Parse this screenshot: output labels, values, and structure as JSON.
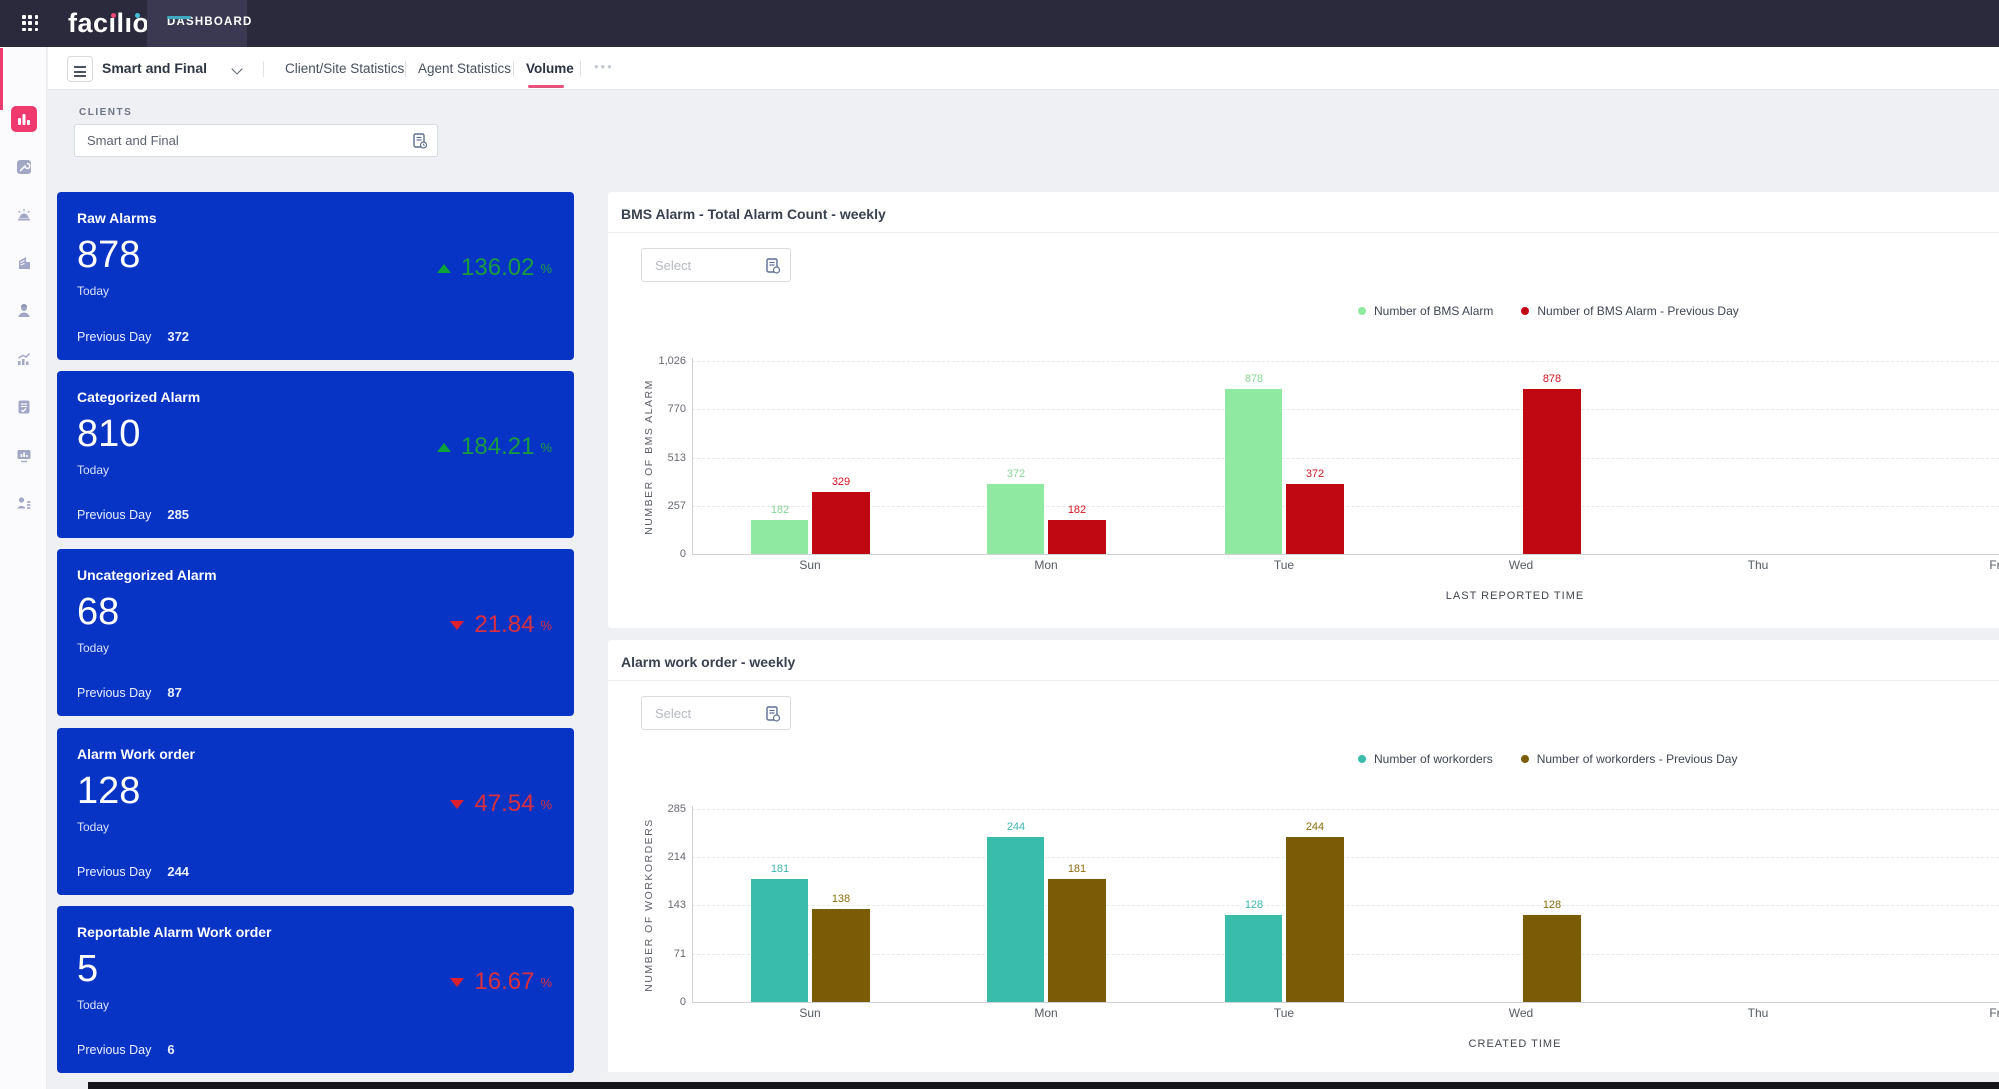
{
  "topbar": {
    "logo_text": "facilio",
    "nav_tab": "DASHBOARD"
  },
  "sidebar": {
    "items": [
      {
        "icon": "dashboard-icon",
        "active": true
      },
      {
        "icon": "maintenance-icon",
        "active": false
      },
      {
        "icon": "alarm-icon",
        "active": false
      },
      {
        "icon": "portfolio-icon",
        "active": false
      },
      {
        "icon": "workforce-icon",
        "active": false
      },
      {
        "icon": "analytics-icon",
        "active": false
      },
      {
        "icon": "reports-icon",
        "active": false
      },
      {
        "icon": "kiosk-icon",
        "active": false
      },
      {
        "icon": "clients-icon",
        "active": false
      }
    ]
  },
  "subnav": {
    "dashboard_name": "Smart and Final",
    "tabs": [
      {
        "label": "Client/Site Statistics",
        "active": false
      },
      {
        "label": "Agent Statistics",
        "active": false
      },
      {
        "label": "Volume",
        "active": true
      }
    ],
    "more": "•••"
  },
  "filters": {
    "clients_label": "CLIENTS",
    "clients_value": "Smart and Final"
  },
  "colors": {
    "card_bg": "#0834c5",
    "accent_pink": "#ee3a6f",
    "teal_underline": "#3fa9c0",
    "logo_dot_pink": "#ee4879",
    "logo_dot_teal": "#41c1d6",
    "up": "#189c3f",
    "up_arrow": "#0da33a",
    "down": "#d92f3e",
    "down_arrow": "#de1f2e"
  },
  "kpi_cards": [
    {
      "title": "Raw Alarms",
      "value": "878",
      "period": "Today",
      "change": "136.02",
      "pct_symbol": "%",
      "direction": "up",
      "prev_label": "Previous Day",
      "prev_value": "372"
    },
    {
      "title": "Categorized Alarm",
      "value": "810",
      "period": "Today",
      "change": "184.21",
      "pct_symbol": "%",
      "direction": "up",
      "prev_label": "Previous Day",
      "prev_value": "285"
    },
    {
      "title": "Uncategorized Alarm",
      "value": "68",
      "period": "Today",
      "change": "21.84",
      "pct_symbol": "%",
      "direction": "down",
      "prev_label": "Previous Day",
      "prev_value": "87"
    },
    {
      "title": "Alarm Work order",
      "value": "128",
      "period": "Today",
      "change": "47.54",
      "pct_symbol": "%",
      "direction": "down",
      "prev_label": "Previous Day",
      "prev_value": "244"
    },
    {
      "title": "Reportable Alarm Work order",
      "value": "5",
      "period": "Today",
      "change": "16.67",
      "pct_symbol": "%",
      "direction": "down",
      "prev_label": "Previous Day",
      "prev_value": "6"
    }
  ],
  "chart_data": [
    {
      "type": "bar",
      "title": "BMS Alarm - Total Alarm Count - weekly",
      "select_placeholder": "Select",
      "categories": [
        "Sun",
        "Mon",
        "Tue",
        "Wed",
        "Thu",
        "Fr"
      ],
      "series": [
        {
          "name": "Number of BMS Alarm",
          "color": "#8fe9a1",
          "label_color": "#86d593",
          "values": [
            182,
            372,
            878,
            null,
            null,
            null
          ]
        },
        {
          "name": "Number of BMS Alarm - Previous Day",
          "color": "#c00813",
          "label_color": "#d01420",
          "values": [
            329,
            182,
            372,
            878,
            null,
            null
          ]
        }
      ],
      "ylabel": "NUMBER OF BMS ALARM",
      "xlabel": "LAST REPORTED TIME",
      "yticks": [
        0,
        257,
        513,
        770,
        1026
      ],
      "ytick_labels": [
        "0",
        "257",
        "513",
        "770",
        "1,026"
      ],
      "ylim": [
        0,
        1026
      ],
      "grid": "dashed",
      "legend_position": "top-center"
    },
    {
      "type": "bar",
      "title": "Alarm work order - weekly",
      "select_placeholder": "Select",
      "categories": [
        "Sun",
        "Mon",
        "Tue",
        "Wed",
        "Thu",
        "Fr"
      ],
      "series": [
        {
          "name": "Number of workorders",
          "color": "#3abcaa",
          "label_color": "#3cb5b0",
          "values": [
            181,
            244,
            128,
            null,
            null,
            null
          ]
        },
        {
          "name": "Number of workorders - Previous Day",
          "color": "#7a5c07",
          "label_color": "#8a6d0b",
          "values": [
            138,
            181,
            244,
            128,
            null,
            null
          ]
        }
      ],
      "ylabel": "NUMBER OF WORKORDERS",
      "xlabel": "CREATED TIME",
      "yticks": [
        0,
        71,
        143,
        214,
        285
      ],
      "ytick_labels": [
        "0",
        "71",
        "143",
        "214",
        "285"
      ],
      "ylim": [
        0,
        285
      ],
      "grid": "dashed",
      "legend_position": "top-center"
    }
  ]
}
